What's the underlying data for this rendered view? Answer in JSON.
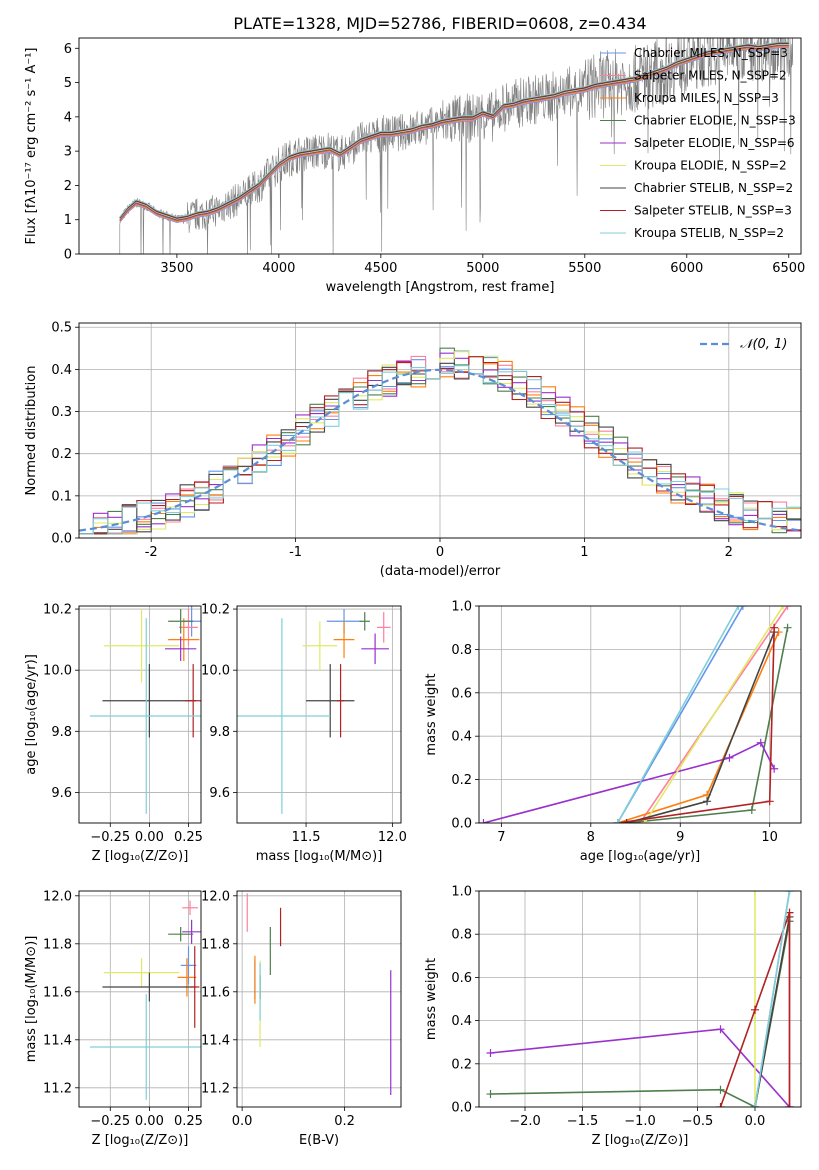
{
  "figure_title": "PLATE=1328, MJD=52786, FIBERID=0608, z=0.434",
  "series_colors": [
    "#6495ED",
    "#FF7F9F",
    "#FF7F0E",
    "#4E7E4E",
    "#9932CC",
    "#E0EA66",
    "#444444",
    "#B22222",
    "#7FCFD8"
  ],
  "chart_data": [
    {
      "type": "line",
      "title": "PLATE=1328, MJD=52786, FIBERID=0608, z=0.434",
      "xlabel": "wavelength [Angstrom, rest frame]",
      "ylabel": "Flux [fλ10⁻¹⁷ erg cm⁻² s⁻¹ A⁻¹]",
      "xlim": [
        3020,
        6560
      ],
      "ylim": [
        0,
        6.3
      ],
      "xticks": [
        3500,
        4000,
        4500,
        5000,
        5500,
        6000,
        6500
      ],
      "yticks": [
        0,
        1,
        2,
        3,
        4,
        5,
        6
      ],
      "legend": "top-right",
      "legend_entries": [
        "Chabrier MILES, N_SSP=3",
        "Salpeter MILES, N_SSP=2",
        "Kroupa MILES, N_SSP=3",
        "Chabrier ELODIE, N_SSP=3",
        "Salpeter ELODIE, N_SSP=6",
        "Kroupa ELODIE, N_SSP=2",
        "Chabrier STELIB, N_SSP=2",
        "Salpeter STELIB, N_SSP=3",
        "Kroupa STELIB, N_SSP=2"
      ],
      "model_curve": {
        "x": [
          3220,
          3260,
          3300,
          3350,
          3400,
          3450,
          3500,
          3550,
          3600,
          3650,
          3700,
          3750,
          3800,
          3850,
          3900,
          3950,
          4000,
          4050,
          4100,
          4150,
          4200,
          4250,
          4300,
          4350,
          4400,
          4450,
          4500,
          4550,
          4600,
          4650,
          4700,
          4750,
          4800,
          4850,
          4900,
          4950,
          5000,
          5050,
          5100,
          5150,
          5200,
          5250,
          5300,
          5350,
          5400,
          5450,
          5500,
          5550,
          5600,
          5650,
          5700,
          5750,
          5800,
          5850,
          5900,
          5950,
          6000,
          6050,
          6100,
          6150,
          6200,
          6250,
          6300,
          6350,
          6400,
          6450,
          6500
        ],
        "y": [
          1.0,
          1.3,
          1.5,
          1.4,
          1.2,
          1.1,
          1.0,
          1.05,
          1.15,
          1.2,
          1.3,
          1.45,
          1.6,
          1.8,
          2.0,
          2.3,
          2.6,
          2.8,
          2.9,
          2.95,
          3.0,
          3.05,
          2.9,
          3.1,
          3.3,
          3.4,
          3.5,
          3.5,
          3.55,
          3.6,
          3.7,
          3.75,
          3.85,
          3.9,
          3.95,
          3.95,
          4.1,
          4.0,
          4.3,
          4.35,
          4.45,
          4.5,
          4.55,
          4.6,
          4.7,
          4.75,
          4.8,
          4.9,
          4.95,
          5.0,
          5.05,
          5.1,
          5.2,
          5.3,
          5.4,
          5.55,
          5.65,
          5.75,
          5.85,
          5.9,
          5.95,
          6.0,
          6.05,
          6.0,
          6.05,
          6.1,
          6.1
        ]
      }
    },
    {
      "type": "bar",
      "xlabel": "(data-model)/error",
      "ylabel": "Normed distribution",
      "xlim": [
        -2.5,
        2.5
      ],
      "ylim": [
        0,
        0.51
      ],
      "xticks": [
        -2,
        -1,
        0,
        1,
        2
      ],
      "yticks": [
        0.0,
        0.1,
        0.2,
        0.3,
        0.4,
        0.5
      ],
      "legend": "top-right",
      "legend_entries": [
        "𝒩(0, 1)"
      ]
    },
    {
      "type": "scatter",
      "xlabel": "Z [log₁₀(Z/Z⊙)]",
      "ylabel": "age [log₁₀(age/yr)]",
      "xlim": [
        -0.45,
        0.33
      ],
      "ylim": [
        9.5,
        10.21
      ],
      "xticks": [
        -0.25,
        0.0,
        0.25
      ],
      "xticklabels": [
        "−0.25",
        "0.00",
        "0.25"
      ],
      "yticks": [
        9.6,
        9.8,
        10.0,
        10.2
      ],
      "points": [
        {
          "x": 0.27,
          "y": 10.16,
          "xerr": 0.06,
          "yerr": 0.05
        },
        {
          "x": 0.25,
          "y": 10.14,
          "xerr": 0.06,
          "yerr": 0.06
        },
        {
          "x": 0.22,
          "y": 10.1,
          "xerr": 0.1,
          "yerr": 0.07
        },
        {
          "x": 0.2,
          "y": 10.16,
          "xerr": 0.08,
          "yerr": 0.04
        },
        {
          "x": 0.2,
          "y": 10.07,
          "xerr": 0.1,
          "yerr": 0.04
        },
        {
          "x": -0.05,
          "y": 10.08,
          "xerr": 0.24,
          "yerr": 0.12
        },
        {
          "x": 0.0,
          "y": 9.9,
          "xerr": 0.3,
          "yerr": 0.12
        },
        {
          "x": 0.28,
          "y": 9.9,
          "xerr": 0.05,
          "yerr": 0.12
        },
        {
          "x": -0.02,
          "y": 9.85,
          "xerr": 0.36,
          "yerr": 0.32
        }
      ]
    },
    {
      "type": "scatter",
      "xlabel": "mass [log₁₀(M/M⊙)]",
      "xlim": [
        11.1,
        12.05
      ],
      "ylim": [
        9.5,
        10.21
      ],
      "xticks": [
        11.5,
        12.0
      ],
      "xticklabels": [
        "11.5",
        "12.0"
      ],
      "yticks": [
        9.6,
        9.8,
        10.0,
        10.2
      ],
      "points": [
        {
          "x": 11.72,
          "y": 10.16,
          "xerr": 0.1,
          "yerr": 0.04
        },
        {
          "x": 11.95,
          "y": 10.14,
          "xerr": 0.04,
          "yerr": 0.05
        },
        {
          "x": 11.72,
          "y": 10.1,
          "xerr": 0.06,
          "yerr": 0.06
        },
        {
          "x": 11.84,
          "y": 10.16,
          "xerr": 0.03,
          "yerr": 0.03
        },
        {
          "x": 11.9,
          "y": 10.07,
          "xerr": 0.08,
          "yerr": 0.05
        },
        {
          "x": 11.58,
          "y": 10.08,
          "xerr": 0.1,
          "yerr": 0.08
        },
        {
          "x": 11.64,
          "y": 9.9,
          "xerr": 0.14,
          "yerr": 0.12
        },
        {
          "x": 11.7,
          "y": 9.9,
          "xerr": 0.02,
          "yerr": 0.12
        },
        {
          "x": 11.36,
          "y": 9.85,
          "xerr": 0.28,
          "yerr": 0.32
        }
      ]
    },
    {
      "type": "line",
      "xlabel": "age  [log₁₀(age/yr)]",
      "ylabel": "mass weight",
      "xlim": [
        6.75,
        10.35
      ],
      "ylim": [
        0,
        1.0
      ],
      "xticks": [
        7,
        8,
        9,
        10
      ],
      "yticks": [
        0.0,
        0.2,
        0.4,
        0.6,
        0.8,
        1.0
      ],
      "series": [
        {
          "x": [
            8.3,
            9.7
          ],
          "y": [
            0.0,
            1.0
          ]
        },
        {
          "x": [
            8.55,
            10.2
          ],
          "y": [
            0.0,
            1.0
          ]
        },
        {
          "x": [
            8.3,
            9.3,
            10.1
          ],
          "y": [
            0.0,
            0.13,
            0.88
          ]
        },
        {
          "x": [
            8.4,
            9.8,
            10.2
          ],
          "y": [
            0.0,
            0.06,
            0.9
          ]
        },
        {
          "x": [
            6.8,
            9.55,
            9.9,
            10.05
          ],
          "y": [
            0.0,
            0.3,
            0.37,
            0.25
          ]
        },
        {
          "x": [
            8.6,
            10.15
          ],
          "y": [
            0.0,
            1.0
          ]
        },
        {
          "x": [
            8.4,
            9.3,
            10.05
          ],
          "y": [
            0.0,
            0.1,
            0.88
          ]
        },
        {
          "x": [
            8.3,
            10.0,
            10.05
          ],
          "y": [
            0.0,
            0.1,
            0.9
          ]
        },
        {
          "x": [
            8.3,
            9.65
          ],
          "y": [
            0.0,
            1.0
          ]
        }
      ]
    },
    {
      "type": "scatter",
      "xlabel": "Z [log₁₀(Z/Z⊙)]",
      "ylabel": "mass [log₁₀(M/M⊙)]",
      "xlim": [
        -0.45,
        0.33
      ],
      "ylim": [
        11.12,
        12.02
      ],
      "xticks": [
        -0.25,
        0.0,
        0.25
      ],
      "xticklabels": [
        "−0.25",
        "0.00",
        "0.25"
      ],
      "yticks": [
        11.2,
        11.4,
        11.6,
        11.8,
        12.0
      ],
      "points": [
        {
          "x": 0.25,
          "y": 11.71,
          "xerr": 0.05,
          "yerr": 0.08
        },
        {
          "x": 0.26,
          "y": 11.95,
          "xerr": 0.05,
          "yerr": 0.03
        },
        {
          "x": 0.24,
          "y": 11.66,
          "xerr": 0.06,
          "yerr": 0.08
        },
        {
          "x": 0.2,
          "y": 11.84,
          "xerr": 0.08,
          "yerr": 0.03
        },
        {
          "x": 0.27,
          "y": 11.85,
          "xerr": 0.06,
          "yerr": 0.05
        },
        {
          "x": -0.05,
          "y": 11.68,
          "xerr": 0.24,
          "yerr": 0.06
        },
        {
          "x": 0.0,
          "y": 11.62,
          "xerr": 0.3,
          "yerr": 0.06
        },
        {
          "x": 0.29,
          "y": 11.62,
          "xerr": 0.03,
          "yerr": 0.17
        },
        {
          "x": -0.02,
          "y": 11.37,
          "xerr": 0.36,
          "yerr": 0.22
        }
      ]
    },
    {
      "type": "scatter",
      "xlabel": "E(B-V)",
      "xlim": [
        -0.01,
        0.31
      ],
      "ylim": [
        11.12,
        12.02
      ],
      "xticks": [
        0.0,
        0.2
      ],
      "xticklabels": [
        "0.0",
        "0.2"
      ],
      "yticks": [
        11.2,
        11.4,
        11.6,
        11.8,
        12.0
      ],
      "points": [
        {
          "x": 0.025,
          "y": 11.65,
          "yerr": 0.08
        },
        {
          "x": 0.01,
          "y": 11.93,
          "yerr": 0.08
        },
        {
          "x": 0.025,
          "y": 11.65,
          "yerr": 0.1
        },
        {
          "x": 0.055,
          "y": 11.77,
          "yerr": 0.1
        },
        {
          "x": 0.29,
          "y": 11.43,
          "yerr": 0.26
        },
        {
          "x": 0.035,
          "y": 11.55,
          "yerr": 0.18
        },
        {
          "x": 0.035,
          "y": 11.62,
          "yerr": 0.05
        },
        {
          "x": 0.075,
          "y": 11.87,
          "yerr": 0.08
        },
        {
          "x": 0.035,
          "y": 11.6,
          "yerr": 0.12
        }
      ]
    },
    {
      "type": "line",
      "xlabel": "Z [log₁₀(Z/Z⊙)]",
      "ylabel": "mass weight",
      "xlim": [
        -2.4,
        0.4
      ],
      "ylim": [
        0,
        1.0
      ],
      "xticks": [
        -2.0,
        -1.5,
        -1.0,
        -0.5,
        0.0
      ],
      "xticklabels": [
        "−2.0",
        "−1.5",
        "−1.0",
        "−0.5",
        "0.0"
      ],
      "yticks": [
        0.0,
        0.2,
        0.4,
        0.6,
        0.8,
        1.0
      ],
      "series": [
        {
          "x": [
            0.0,
            0.3
          ],
          "y": [
            0.0,
            1.0
          ]
        },
        {
          "x": [
            0.3,
            0.3
          ],
          "y": [
            0.0,
            0.9
          ]
        },
        {
          "x": [
            0.0,
            0.3
          ],
          "y": [
            0.0,
            0.88
          ]
        },
        {
          "x": [
            -2.3,
            -0.3,
            0.0,
            0.3
          ],
          "y": [
            0.06,
            0.08,
            0.0,
            0.86
          ]
        },
        {
          "x": [
            -2.3,
            -0.3,
            0.3
          ],
          "y": [
            0.25,
            0.36,
            0.0
          ]
        },
        {
          "x": [
            0.0,
            0.0
          ],
          "y": [
            0.0,
            1.0
          ]
        },
        {
          "x": [
            0.0,
            0.3
          ],
          "y": [
            0.0,
            0.88
          ]
        },
        {
          "x": [
            -0.3,
            0.0,
            0.3,
            0.3
          ],
          "y": [
            0.0,
            0.45,
            0.9,
            0.0
          ]
        },
        {
          "x": [
            0.0,
            0.3
          ],
          "y": [
            0.0,
            1.0
          ]
        }
      ]
    }
  ]
}
